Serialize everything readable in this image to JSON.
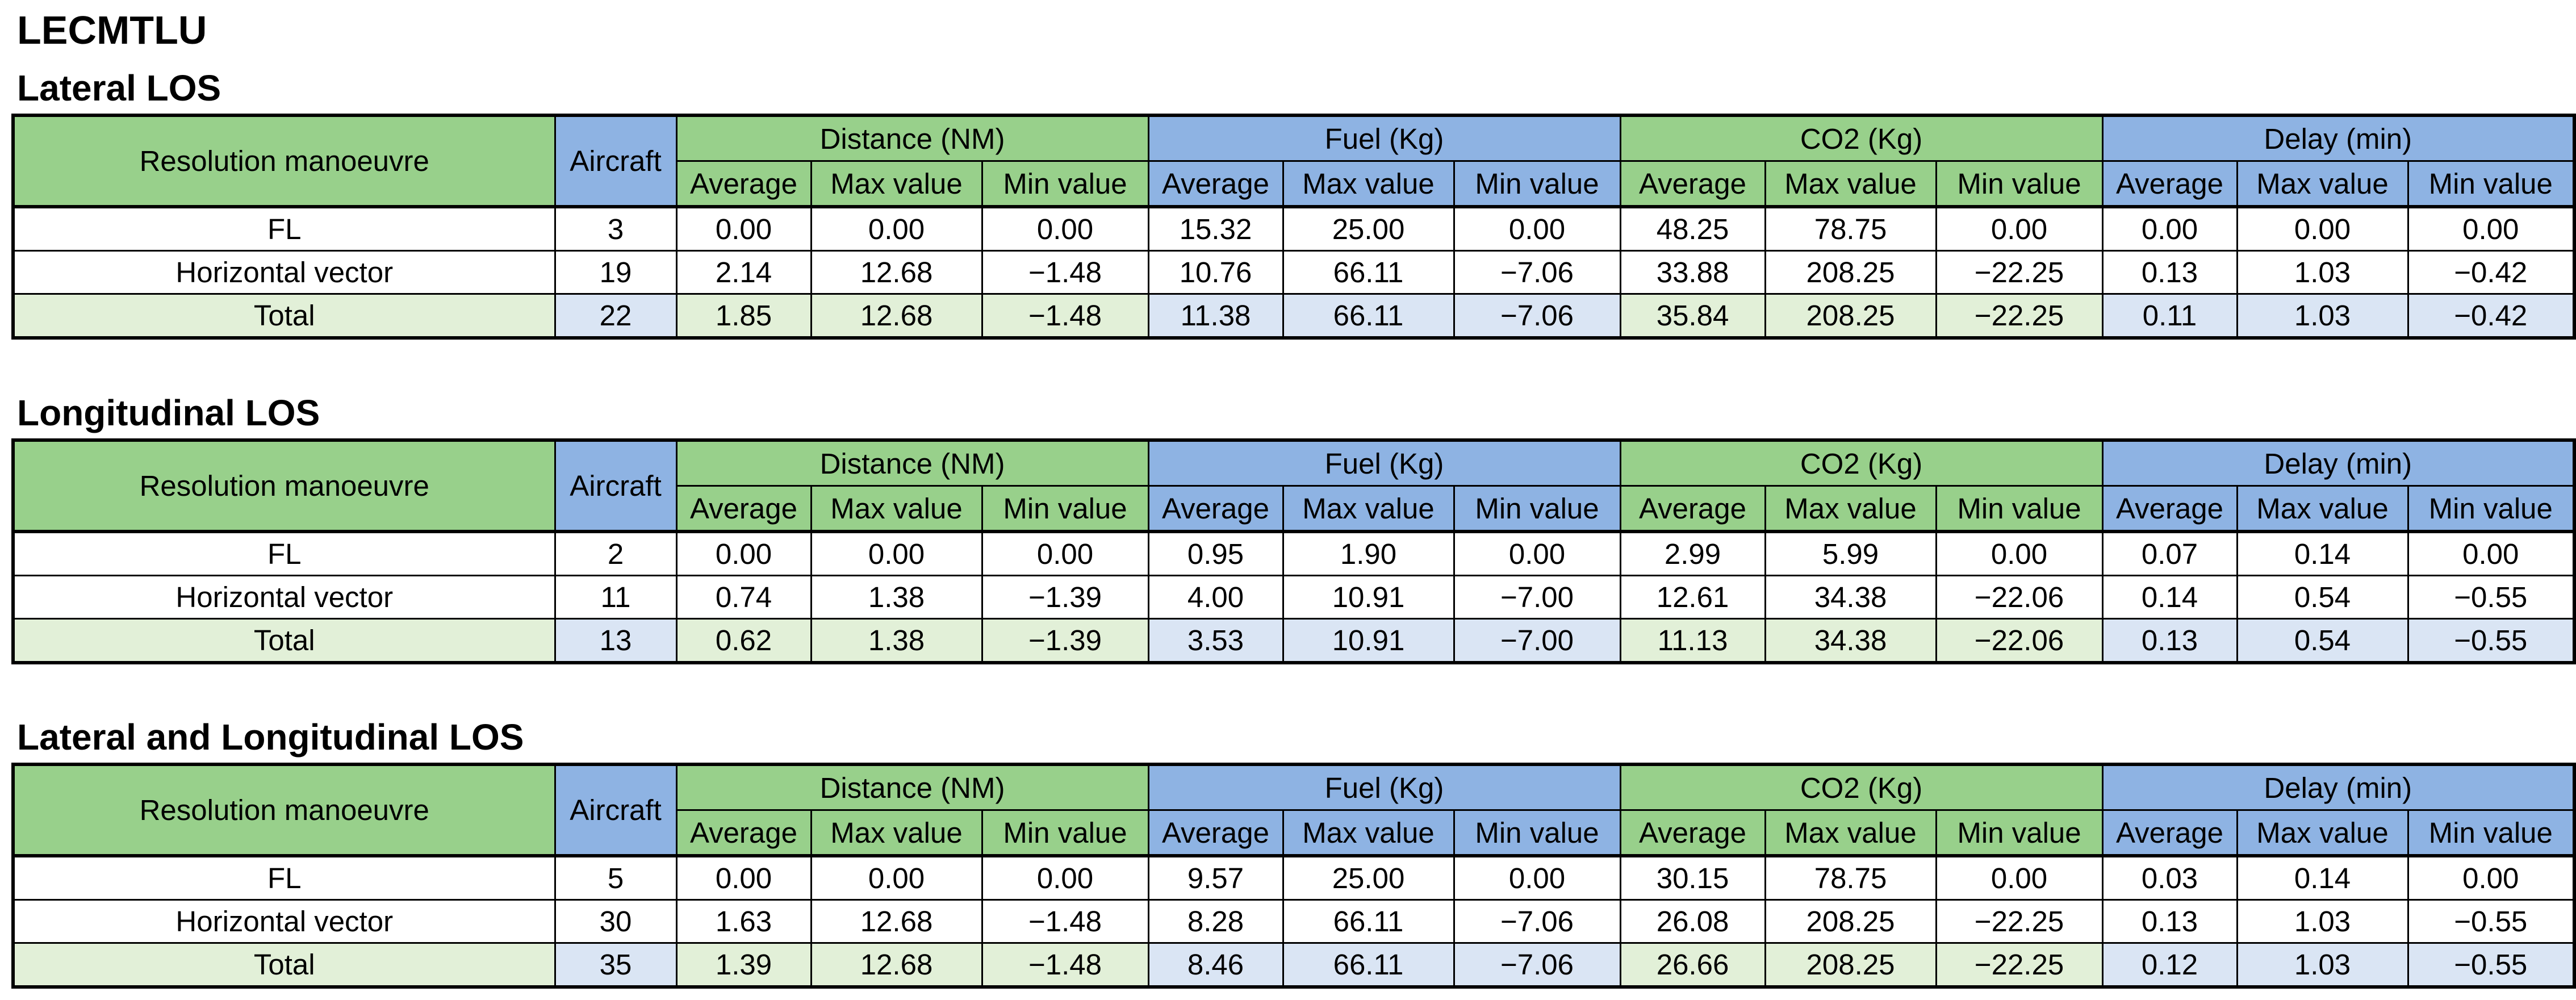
{
  "title": "LECMTLU",
  "headers": {
    "resolution": "Resolution  manoeuvre",
    "aircraft": "Aircraft",
    "groups": [
      "Distance (NM)",
      "Fuel (Kg)",
      "CO2 (Kg)",
      "Delay (min)"
    ],
    "subheaders": [
      "Average",
      "Max value",
      "Min value"
    ]
  },
  "colors": {
    "green_header": "#98d08b",
    "blue_header": "#8eb3e3",
    "light_green_total": "#e2f0d8",
    "light_blue_total": "#dae5f4"
  },
  "sections": [
    {
      "title": "Lateral LOS",
      "rows": [
        {
          "label": "FL",
          "aircraft": "3",
          "values": [
            "0.00",
            "0.00",
            "0.00",
            "15.32",
            "25.00",
            "0.00",
            "48.25",
            "78.75",
            "0.00",
            "0.00",
            "0.00",
            "0.00"
          ]
        },
        {
          "label": "Horizontal vector",
          "aircraft": "19",
          "values": [
            "2.14",
            "12.68",
            "−1.48",
            "10.76",
            "66.11",
            "−7.06",
            "33.88",
            "208.25",
            "−22.25",
            "0.13",
            "1.03",
            "−0.42"
          ]
        },
        {
          "label": "Total",
          "aircraft": "22",
          "values": [
            "1.85",
            "12.68",
            "−1.48",
            "11.38",
            "66.11",
            "−7.06",
            "35.84",
            "208.25",
            "−22.25",
            "0.11",
            "1.03",
            "−0.42"
          ]
        }
      ]
    },
    {
      "title": "Longitudinal LOS",
      "rows": [
        {
          "label": "FL",
          "aircraft": "2",
          "values": [
            "0.00",
            "0.00",
            "0.00",
            "0.95",
            "1.90",
            "0.00",
            "2.99",
            "5.99",
            "0.00",
            "0.07",
            "0.14",
            "0.00"
          ]
        },
        {
          "label": "Horizontal vector",
          "aircraft": "11",
          "values": [
            "0.74",
            "1.38",
            "−1.39",
            "4.00",
            "10.91",
            "−7.00",
            "12.61",
            "34.38",
            "−22.06",
            "0.14",
            "0.54",
            "−0.55"
          ]
        },
        {
          "label": "Total",
          "aircraft": "13",
          "values": [
            "0.62",
            "1.38",
            "−1.39",
            "3.53",
            "10.91",
            "−7.00",
            "11.13",
            "34.38",
            "−22.06",
            "0.13",
            "0.54",
            "−0.55"
          ]
        }
      ]
    },
    {
      "title": "Lateral and Longitudinal LOS",
      "rows": [
        {
          "label": "FL",
          "aircraft": "5",
          "values": [
            "0.00",
            "0.00",
            "0.00",
            "9.57",
            "25.00",
            "0.00",
            "30.15",
            "78.75",
            "0.00",
            "0.03",
            "0.14",
            "0.00"
          ]
        },
        {
          "label": "Horizontal vector",
          "aircraft": "30",
          "values": [
            "1.63",
            "12.68",
            "−1.48",
            "8.28",
            "66.11",
            "−7.06",
            "26.08",
            "208.25",
            "−22.25",
            "0.13",
            "1.03",
            "−0.55"
          ]
        },
        {
          "label": "Total",
          "aircraft": "35",
          "values": [
            "1.39",
            "12.68",
            "−1.48",
            "8.46",
            "66.11",
            "−7.06",
            "26.66",
            "208.25",
            "−22.25",
            "0.12",
            "1.03",
            "−0.55"
          ]
        }
      ]
    }
  ]
}
